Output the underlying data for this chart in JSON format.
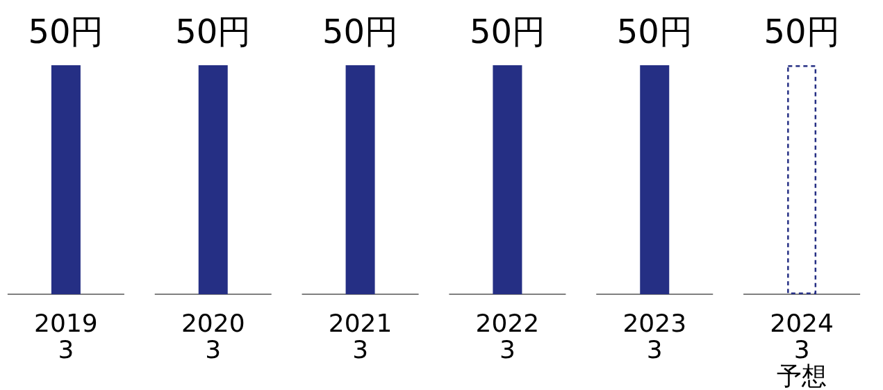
{
  "chart_data": {
    "type": "bar",
    "stacked": true,
    "categories": [
      "2019\n3",
      "2020\n3",
      "2021\n3",
      "2022\n3",
      "2023\n3",
      "2024\n3\n予想"
    ],
    "series": [
      {
        "color": "#252f84",
        "values": [
          50,
          50,
          50,
          50,
          50,
          null
        ],
        "value_labels": [
          "50円",
          "50円",
          "50円",
          "50円",
          "50円",
          null
        ]
      },
      {
        "color": "#252f84",
        "line_style": "dashed",
        "values": [
          null,
          null,
          null,
          null,
          null,
          50
        ],
        "value_labels": [
          null,
          null,
          null,
          null,
          null,
          "50円"
        ]
      }
    ]
  }
}
